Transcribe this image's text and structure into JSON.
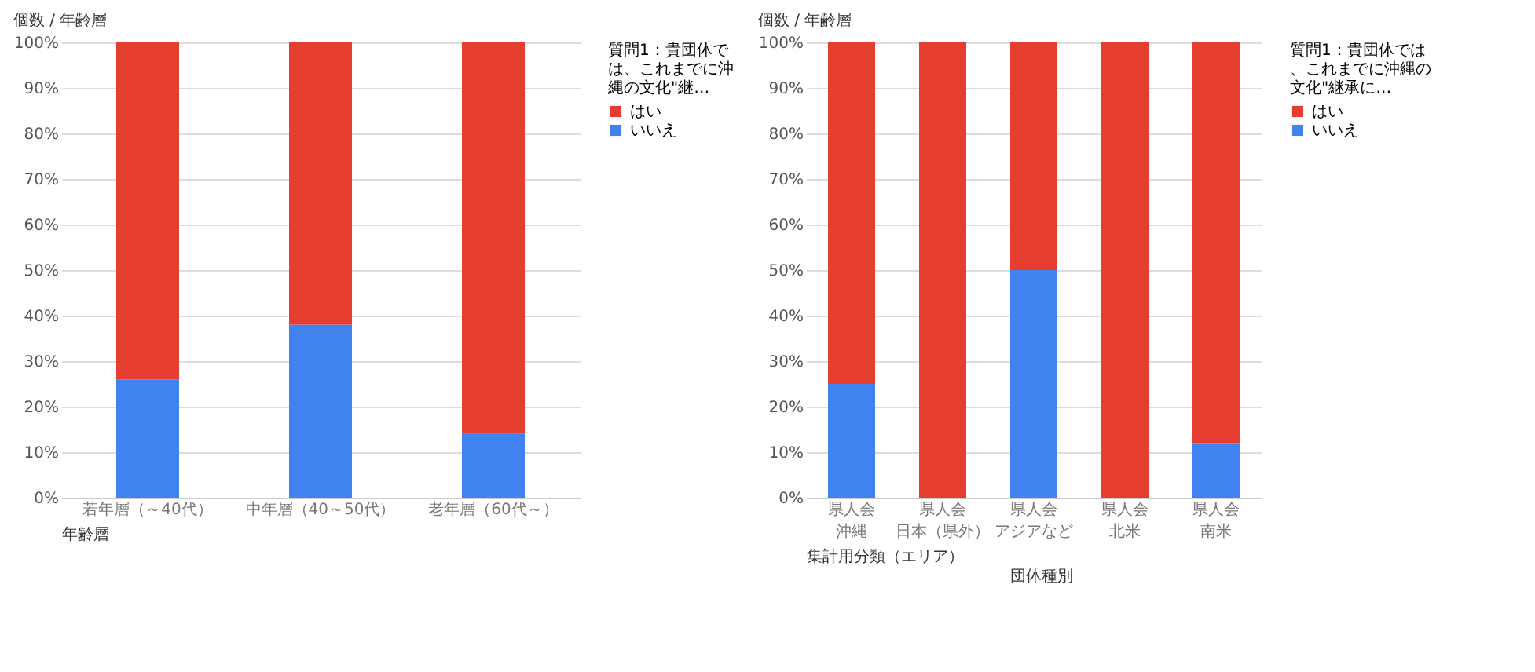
{
  "chart_data": [
    {
      "type": "bar",
      "stacked": true,
      "title": "個数 / 年齢層",
      "xlabel": "年齢層",
      "legend_title": "質問1：貴団体では、これまでに沖縄の文化\"継…",
      "categories": [
        "若年層（～40代）",
        "中年層（40～50代）",
        "老年層（60代～）"
      ],
      "series": [
        {
          "name": "いいえ",
          "color": "#3f82f0",
          "values": [
            26,
            38,
            14
          ]
        },
        {
          "name": "はい",
          "color": "#e53e30",
          "values": [
            74,
            62,
            86
          ]
        }
      ],
      "ylim": [
        0,
        100
      ],
      "yticks": [
        {
          "value": 0,
          "label": "0%"
        },
        {
          "value": 10,
          "label": "10%"
        },
        {
          "value": 20,
          "label": "20%"
        },
        {
          "value": 30,
          "label": "30%"
        },
        {
          "value": 40,
          "label": "40%"
        },
        {
          "value": 50,
          "label": "50%"
        },
        {
          "value": 60,
          "label": "60%"
        },
        {
          "value": 70,
          "label": "70%"
        },
        {
          "value": 80,
          "label": "80%"
        },
        {
          "value": 90,
          "label": "90%"
        },
        {
          "value": 100,
          "label": "100%"
        }
      ],
      "grid": "y",
      "legend": "right"
    },
    {
      "type": "bar",
      "stacked": true,
      "title": "個数 / 年齢層",
      "xlabel": "集計用分類（エリア）",
      "annotations": [
        "団体種別"
      ],
      "legend_title": "質問1：貴団体では、これまでに沖縄の文化\"継承に…",
      "categories": [
        "県人会沖縄",
        "県人会日本（県外）",
        "県人会アジアなど",
        "県人会北米",
        "県人会南米"
      ],
      "series": [
        {
          "name": "いいえ",
          "color": "#3f82f0",
          "values": [
            25,
            0,
            50,
            0,
            12
          ]
        },
        {
          "name": "はい",
          "color": "#e53e30",
          "values": [
            75,
            100,
            50,
            100,
            88
          ]
        }
      ],
      "ylim": [
        0,
        100
      ],
      "yticks": [
        {
          "value": 0,
          "label": "0%"
        },
        {
          "value": 10,
          "label": "10%"
        },
        {
          "value": 20,
          "label": "20%"
        },
        {
          "value": 30,
          "label": "30%"
        },
        {
          "value": 40,
          "label": "40%"
        },
        {
          "value": 50,
          "label": "50%"
        },
        {
          "value": 60,
          "label": "60%"
        },
        {
          "value": 70,
          "label": "70%"
        },
        {
          "value": 80,
          "label": "80%"
        },
        {
          "value": 90,
          "label": "90%"
        },
        {
          "value": 100,
          "label": "100%"
        }
      ],
      "grid": "y",
      "legend": "right"
    }
  ]
}
